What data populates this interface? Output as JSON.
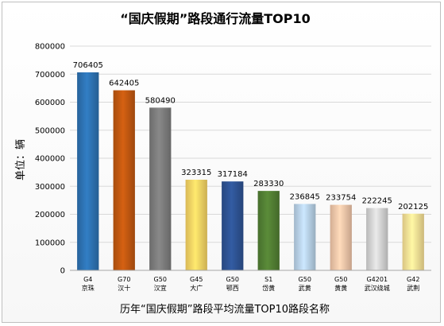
{
  "chart_data": {
    "type": "bar",
    "title": "“国庆假期”路段通行流量TOP10",
    "xlabel": "历年“国庆假期”路段平均流量TOP10路段名称",
    "ylabel": "单位：辆",
    "ylim": [
      0,
      800000
    ],
    "yticks": [
      "0",
      "100000",
      "200000",
      "300000",
      "400000",
      "500000",
      "600000",
      "700000",
      "800000"
    ],
    "yticks_values": [
      0,
      100000,
      200000,
      300000,
      400000,
      500000,
      600000,
      700000,
      800000
    ],
    "grid": true,
    "categories": [
      [
        "G4",
        "京珠"
      ],
      [
        "G70",
        "汉十"
      ],
      [
        "G50",
        "汉宜"
      ],
      [
        "G45",
        "大广"
      ],
      [
        "G50",
        "鄂西"
      ],
      [
        "S1",
        "岱黄"
      ],
      [
        "G50",
        "武黄"
      ],
      [
        "G50",
        "黄黄"
      ],
      [
        "G4201",
        "武汉绕城"
      ],
      [
        "G42",
        "武荆"
      ]
    ],
    "values": [
      706405,
      642405,
      580490,
      323315,
      317184,
      283330,
      236845,
      233754,
      222245,
      202125
    ],
    "value_labels": [
      "706405",
      "642405",
      "580490",
      "323315",
      "317184",
      "283330",
      "236845",
      "233754",
      "222245",
      "202125"
    ],
    "colors": [
      "#2e75b6",
      "#c55a11",
      "#7f7f7f",
      "#ffd966",
      "#2f5597",
      "#548235",
      "#bdd7ee",
      "#f8cbad",
      "#d9d9d9",
      "#ffe699"
    ]
  }
}
